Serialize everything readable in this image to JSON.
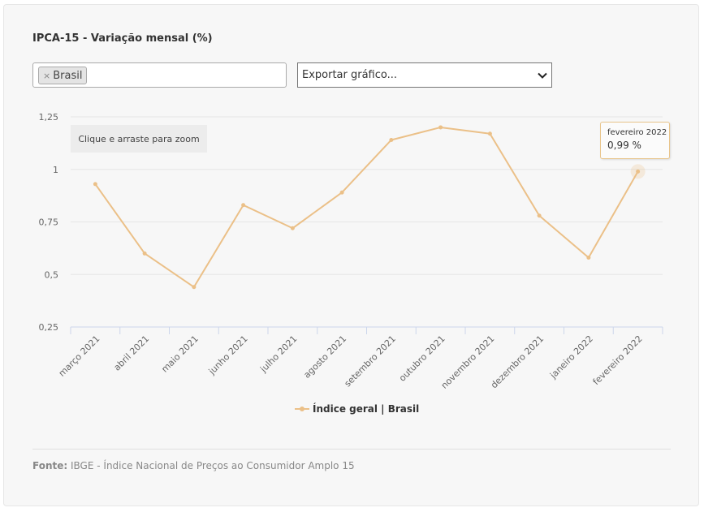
{
  "header": {
    "title": "IPCA-15 - Variação mensal (%)"
  },
  "filters": {
    "tags": [
      {
        "label": "Brasil",
        "remove_glyph": "×"
      }
    ],
    "export_select": {
      "value": "Exportar gráfico...",
      "icon": "chevron-down-icon"
    }
  },
  "zoom_hint": "Clique e arraste para zoom",
  "tooltip": {
    "label": "fevereiro 2022",
    "value": "0,99 %"
  },
  "legend": {
    "label": "Índice geral | Brasil"
  },
  "footer": {
    "source_label": "Fonte:",
    "source_text": "IBGE - Índice Nacional de Preços ao Consumidor Amplo 15"
  },
  "colors": {
    "series": "#ebc088",
    "grid": "#e6e6e6",
    "axis": "#ccd6eb",
    "text": "#666666"
  },
  "chart_data": {
    "type": "line",
    "title": "IPCA-15 - Variação mensal (%)",
    "xlabel": "",
    "ylabel": "",
    "categories": [
      "março 2021",
      "abril 2021",
      "maio 2021",
      "junho 2021",
      "julho 2021",
      "agosto 2021",
      "setembro 2021",
      "outubro 2021",
      "novembro 2021",
      "dezembro 2021",
      "janeiro 2022",
      "fevereiro 2022"
    ],
    "series": [
      {
        "name": "Índice geral | Brasil",
        "values": [
          0.93,
          0.6,
          0.44,
          0.83,
          0.72,
          0.89,
          1.14,
          1.2,
          1.17,
          0.78,
          0.58,
          0.99
        ]
      }
    ],
    "ylim": [
      0.25,
      1.25
    ],
    "yticks": [
      0.25,
      0.5,
      0.75,
      1,
      1.25
    ],
    "ytick_labels": [
      "0,25",
      "0,5",
      "0,75",
      "1",
      "1,25"
    ],
    "grid": true,
    "legend_position": "bottom-center",
    "highlighted_category": "fevereiro 2022"
  }
}
